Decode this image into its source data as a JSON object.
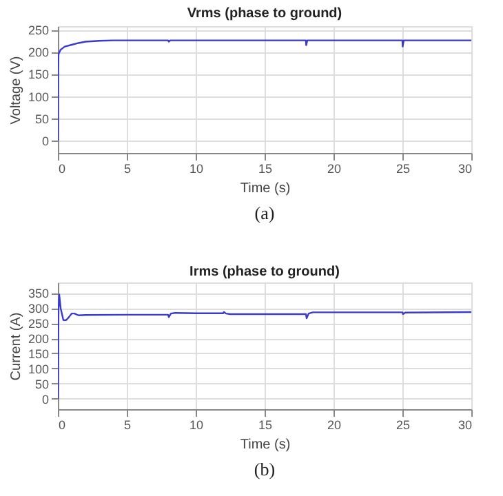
{
  "chart_data": [
    {
      "type": "line",
      "title": "Vrms (phase to ground)",
      "xlabel": "Time (s)",
      "ylabel": "Voltage (V)",
      "annotations": [
        "(a)"
      ],
      "xlim": [
        0,
        30
      ],
      "xticks": [
        0,
        5,
        10,
        15,
        20,
        25,
        30
      ],
      "ylim": [
        -28,
        258
      ],
      "yticks": [
        0,
        50,
        100,
        150,
        200,
        250
      ],
      "grid": true,
      "series": [
        {
          "color": "#3a3acc",
          "x": [
            0,
            0.02,
            0.05,
            0.2,
            0.5,
            1,
            1.5,
            2,
            3,
            4,
            5,
            8,
            8.05,
            8.15,
            18,
            18.02,
            18.1,
            25,
            25.02,
            25.1,
            30
          ],
          "values": [
            0,
            150,
            195,
            205,
            212,
            216,
            220,
            223,
            225,
            226,
            226,
            226,
            223,
            226,
            226,
            215,
            226,
            226,
            212,
            226,
            226
          ]
        }
      ]
    },
    {
      "type": "line",
      "title": "Irms (phase to ground)",
      "xlabel": "Time (s)",
      "ylabel": "Current (A)",
      "annotations": [
        "(b)"
      ],
      "xlim": [
        0,
        30
      ],
      "xticks": [
        0,
        5,
        10,
        15,
        20,
        25,
        30
      ],
      "ylim": [
        -35,
        385
      ],
      "yticks": [
        0,
        50,
        100,
        150,
        200,
        250,
        300,
        350
      ],
      "grid": true,
      "series": [
        {
          "color": "#3a3acc",
          "x": [
            0,
            0.05,
            0.1,
            0.2,
            0.4,
            0.6,
            0.8,
            1,
            1.2,
            1.5,
            2,
            5,
            8,
            8.05,
            8.2,
            8.5,
            10,
            12,
            12.05,
            12.2,
            12.5,
            15,
            18,
            18.05,
            18.2,
            18.5,
            25,
            25.05,
            25.2,
            30
          ],
          "values": [
            0,
            300,
            345,
            300,
            260,
            260,
            270,
            282,
            282,
            276,
            277,
            278,
            278,
            270,
            282,
            284,
            283,
            283,
            287,
            282,
            280,
            280,
            280,
            266,
            282,
            286,
            286,
            280,
            285,
            287
          ]
        }
      ]
    }
  ]
}
